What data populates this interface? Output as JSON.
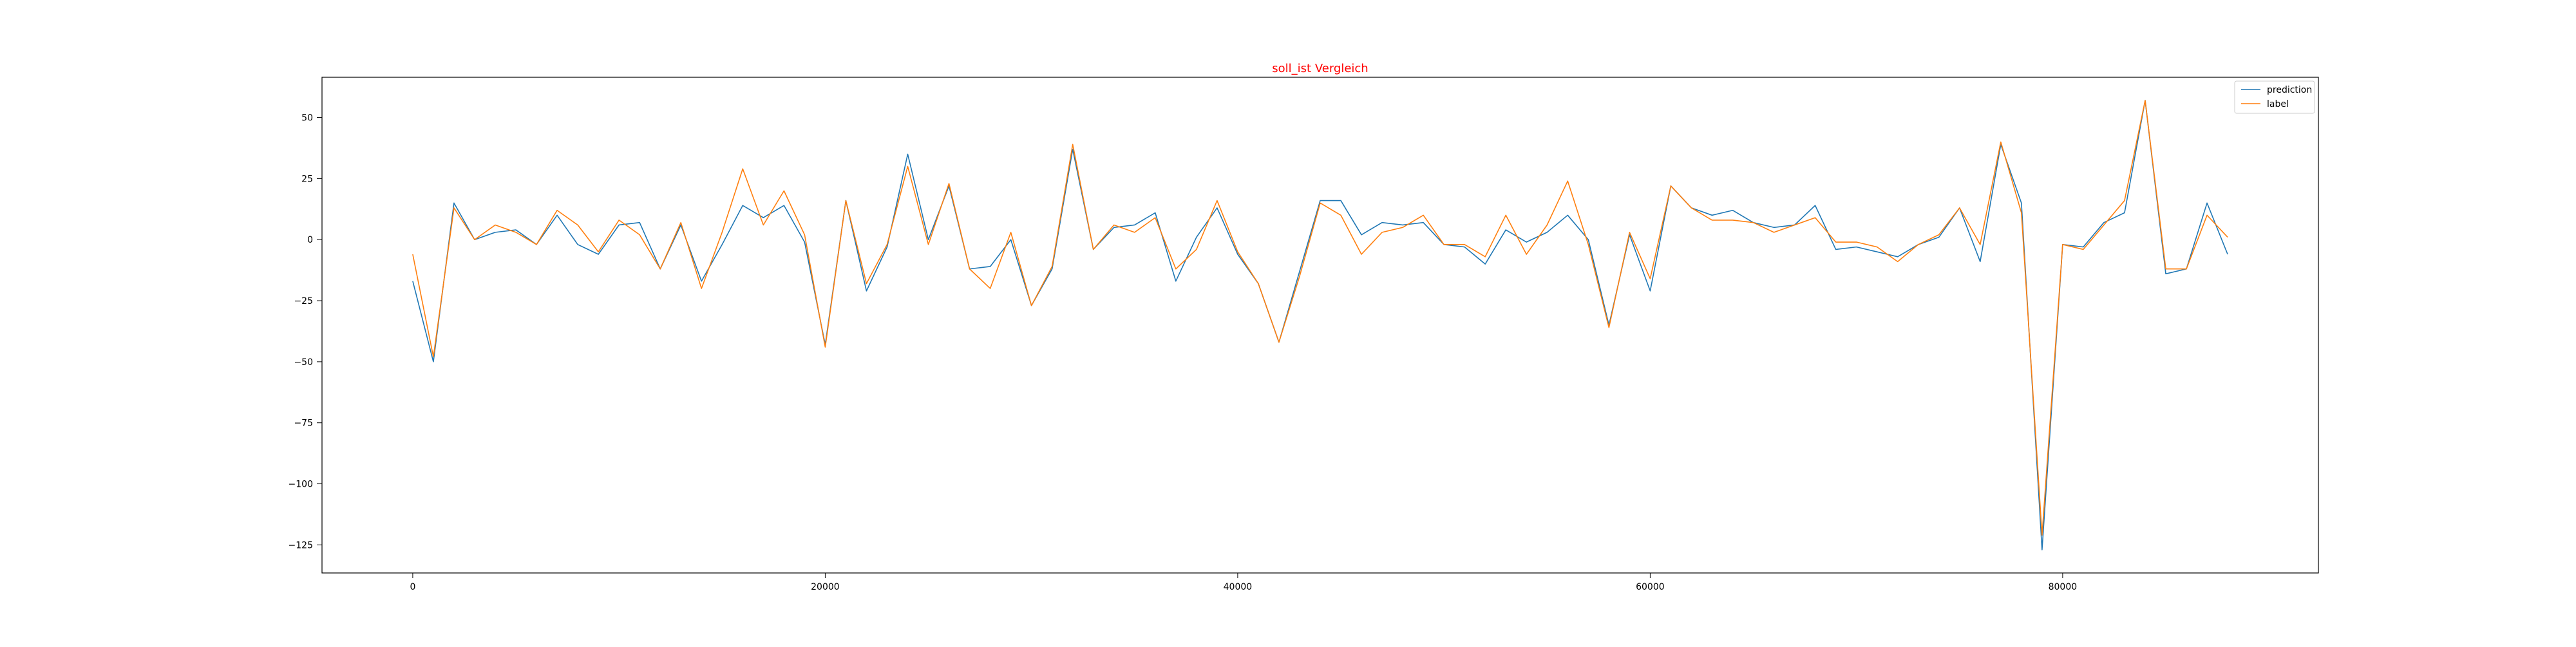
{
  "chart_data": {
    "type": "line",
    "title": "soll_ist Vergleich",
    "title_color": "#ff0000",
    "xlabel": "",
    "ylabel": "",
    "xlim": [
      -4400,
      92400
    ],
    "ylim": [
      -136.5,
      66.5
    ],
    "xticks": [
      0,
      20000,
      40000,
      60000,
      80000
    ],
    "yticks": [
      50,
      25,
      0,
      -25,
      -50,
      -75,
      -100,
      -125
    ],
    "ytick_labels": [
      "50",
      "25",
      "0",
      "−25",
      "−50",
      "−75",
      "−100",
      "−125"
    ],
    "grid": false,
    "legend": {
      "placement": "top-right"
    },
    "x": [
      0,
      1000,
      2000,
      3000,
      4000,
      5000,
      6000,
      7000,
      8000,
      9000,
      10000,
      11000,
      12000,
      13000,
      14000,
      15000,
      16000,
      17000,
      18000,
      19000,
      20000,
      21000,
      22000,
      23000,
      24000,
      25000,
      26000,
      27000,
      28000,
      29000,
      30000,
      31000,
      32000,
      33000,
      34000,
      35000,
      36000,
      37000,
      38000,
      39000,
      40000,
      41000,
      42000,
      43000,
      44000,
      45000,
      46000,
      47000,
      48000,
      49000,
      50000,
      51000,
      52000,
      53000,
      54000,
      55000,
      56000,
      57000,
      58000,
      59000,
      60000,
      61000,
      62000,
      63000,
      64000,
      65000,
      66000,
      67000,
      68000,
      69000,
      70000,
      71000,
      72000,
      73000,
      74000,
      75000,
      76000,
      77000,
      78000,
      79000,
      80000,
      81000,
      82000,
      83000,
      84000,
      85000,
      86000,
      87000,
      88000
    ],
    "series": [
      {
        "name": "prediction",
        "color": "#1f77b4",
        "values": [
          -17,
          -50,
          15,
          0,
          3,
          4,
          -2,
          10,
          -2,
          -6,
          6,
          7,
          -12,
          6,
          -17,
          -2,
          14,
          9,
          14,
          -1,
          -43,
          16,
          -21,
          -3,
          35,
          0,
          22,
          -12,
          -11,
          0,
          -27,
          -12,
          37,
          -4,
          5,
          6,
          11,
          -17,
          1,
          13,
          -6,
          -18,
          -42,
          -13,
          16,
          16,
          2,
          7,
          6,
          7,
          -2,
          -3,
          -10,
          4,
          -1,
          3,
          10,
          0,
          -35,
          2,
          -21,
          22,
          13,
          10,
          12,
          7,
          5,
          6,
          14,
          -4,
          -3,
          -5,
          -7,
          -2,
          1,
          13,
          -9,
          39,
          15,
          -127,
          -2,
          -3,
          7,
          11,
          57,
          -14,
          -12,
          15,
          -6
        ]
      },
      {
        "name": "label",
        "color": "#ff7f0e",
        "values": [
          -6,
          -48,
          13,
          0,
          6,
          3,
          -2,
          12,
          6,
          -5,
          8,
          2,
          -12,
          7,
          -20,
          3,
          29,
          6,
          20,
          2,
          -44,
          16,
          -18,
          -2,
          30,
          -2,
          23,
          -12,
          -20,
          3,
          -27,
          -11,
          39,
          -4,
          6,
          3,
          9,
          -12,
          -4,
          16,
          -5,
          -18,
          -42,
          -15,
          15,
          10,
          -6,
          3,
          5,
          10,
          -2,
          -2,
          -7,
          10,
          -6,
          6,
          24,
          -2,
          -36,
          3,
          -16,
          22,
          13,
          8,
          8,
          7,
          3,
          6,
          9,
          -1,
          -1,
          -3,
          -9,
          -2,
          2,
          13,
          -2,
          40,
          11,
          -121,
          -2,
          -4,
          6,
          16,
          57,
          -12,
          -12,
          10,
          1
        ]
      }
    ]
  }
}
